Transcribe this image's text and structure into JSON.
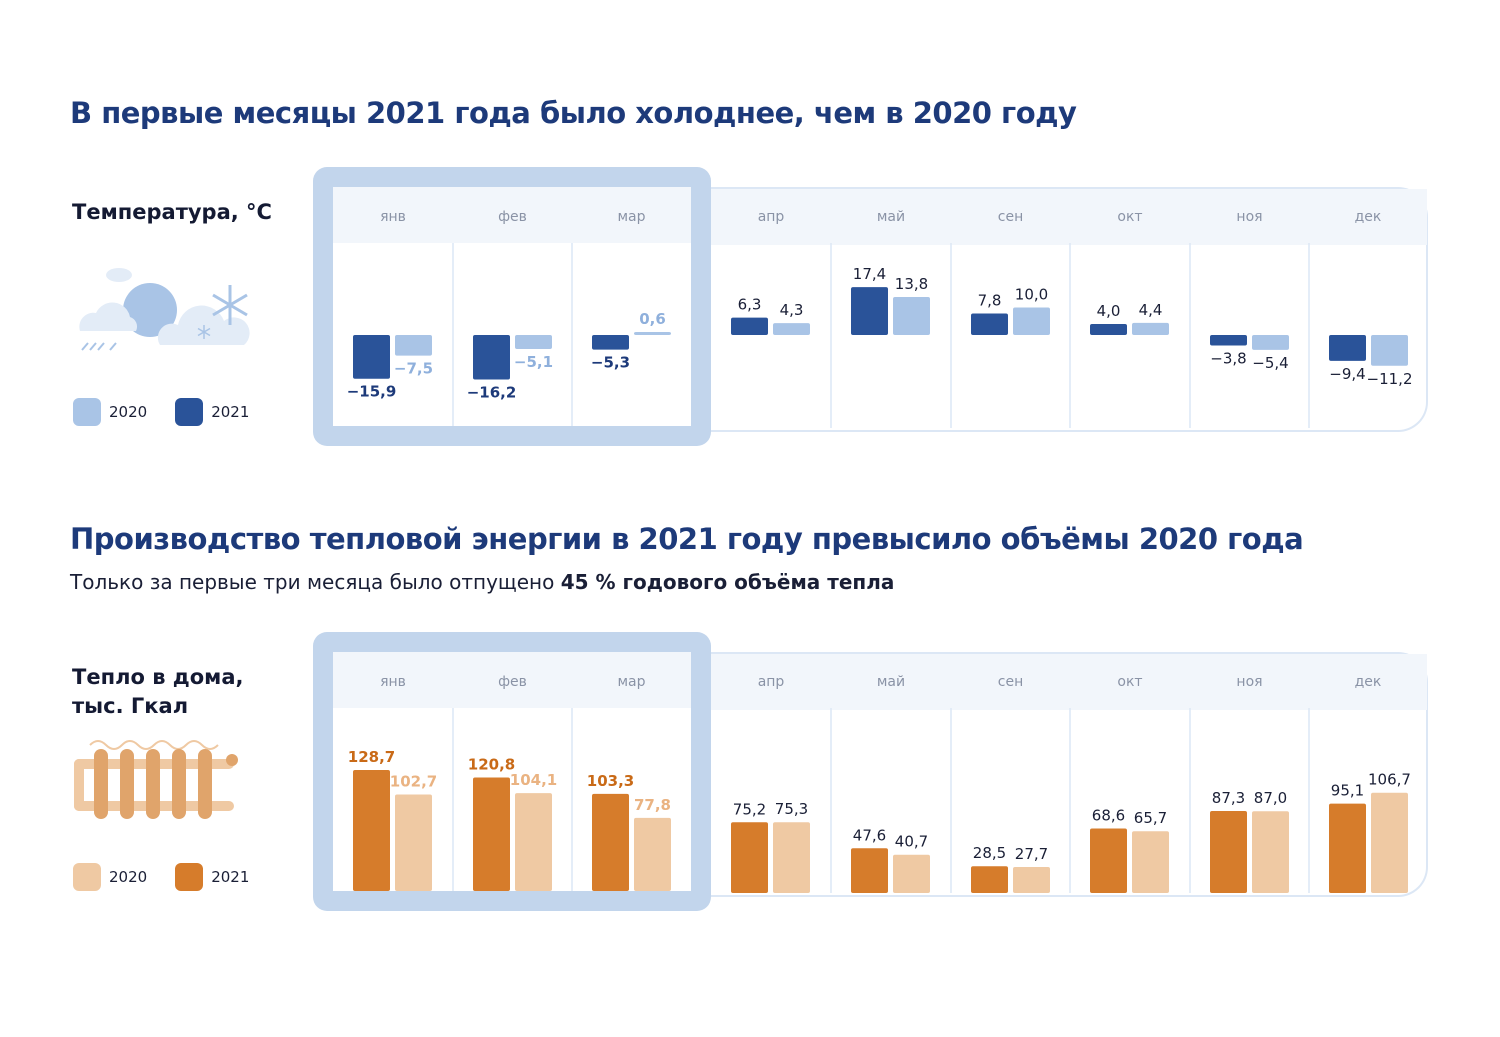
{
  "section1": {
    "title": "В первые месяцы 2021 года было холоднее, чем в 2020 году",
    "side_title": "Температура, °С",
    "legend": [
      {
        "label": "2020",
        "color": "#a9c4e6"
      },
      {
        "label": "2021",
        "color": "#2a5399"
      }
    ]
  },
  "section2": {
    "title": "Производство тепловой энергии в 2021 году превысило объёмы 2020 года",
    "subtitle_plain": "Только за первые три месяца было отпущено ",
    "subtitle_bold": "45 % годового объёма тепла",
    "side_title": "Тепло в дома, тыс. Гкал",
    "legend": [
      {
        "label": "2020",
        "color": "#efc9a3"
      },
      {
        "label": "2021",
        "color": "#d67c2b"
      }
    ]
  },
  "chart_data": [
    {
      "type": "bar",
      "title": "Температура, °С",
      "categories": [
        "янв",
        "фев",
        "мар",
        "апр",
        "май",
        "сен",
        "окт",
        "ноя",
        "дек"
      ],
      "highlighted_categories": [
        "янв",
        "фев",
        "мар"
      ],
      "series": [
        {
          "name": "2021",
          "color": "#2a5399",
          "values": [
            -15.9,
            -16.2,
            -5.3,
            6.3,
            17.4,
            7.8,
            4.0,
            -3.8,
            -9.4
          ],
          "labels": [
            "−15,9",
            "−16,2",
            "−5,3",
            "6,3",
            "17,4",
            "7,8",
            "4,0",
            "−3,8",
            "−9,4"
          ]
        },
        {
          "name": "2020",
          "color": "#a9c4e6",
          "values": [
            -7.5,
            -5.1,
            0.6,
            4.3,
            13.8,
            10.0,
            4.4,
            -5.4,
            -11.2
          ],
          "labels": [
            "−7,5",
            "−5,1",
            "0,6",
            "4,3",
            "13,8",
            "10,0",
            "4,4",
            "−5,4",
            "−11,2"
          ]
        }
      ]
    },
    {
      "type": "bar",
      "title": "Тепло в дома, тыс. Гкал",
      "categories": [
        "янв",
        "фев",
        "мар",
        "апр",
        "май",
        "сен",
        "окт",
        "ноя",
        "дек"
      ],
      "highlighted_categories": [
        "янв",
        "фев",
        "мар"
      ],
      "series": [
        {
          "name": "2021",
          "color": "#d67c2b",
          "values": [
            128.7,
            120.8,
            103.3,
            75.2,
            47.6,
            28.5,
            68.6,
            87.3,
            95.1
          ],
          "labels": [
            "128,7",
            "120,8",
            "103,3",
            "75,2",
            "47,6",
            "28,5",
            "68,6",
            "87,3",
            "95,1"
          ]
        },
        {
          "name": "2020",
          "color": "#efc9a3",
          "values": [
            102.7,
            104.1,
            77.8,
            75.3,
            40.7,
            27.7,
            65.7,
            87.0,
            106.7
          ],
          "labels": [
            "102,7",
            "104,1",
            "77,8",
            "75,3",
            "40,7",
            "27,7",
            "65,7",
            "87,0",
            "106,7"
          ]
        }
      ]
    }
  ]
}
